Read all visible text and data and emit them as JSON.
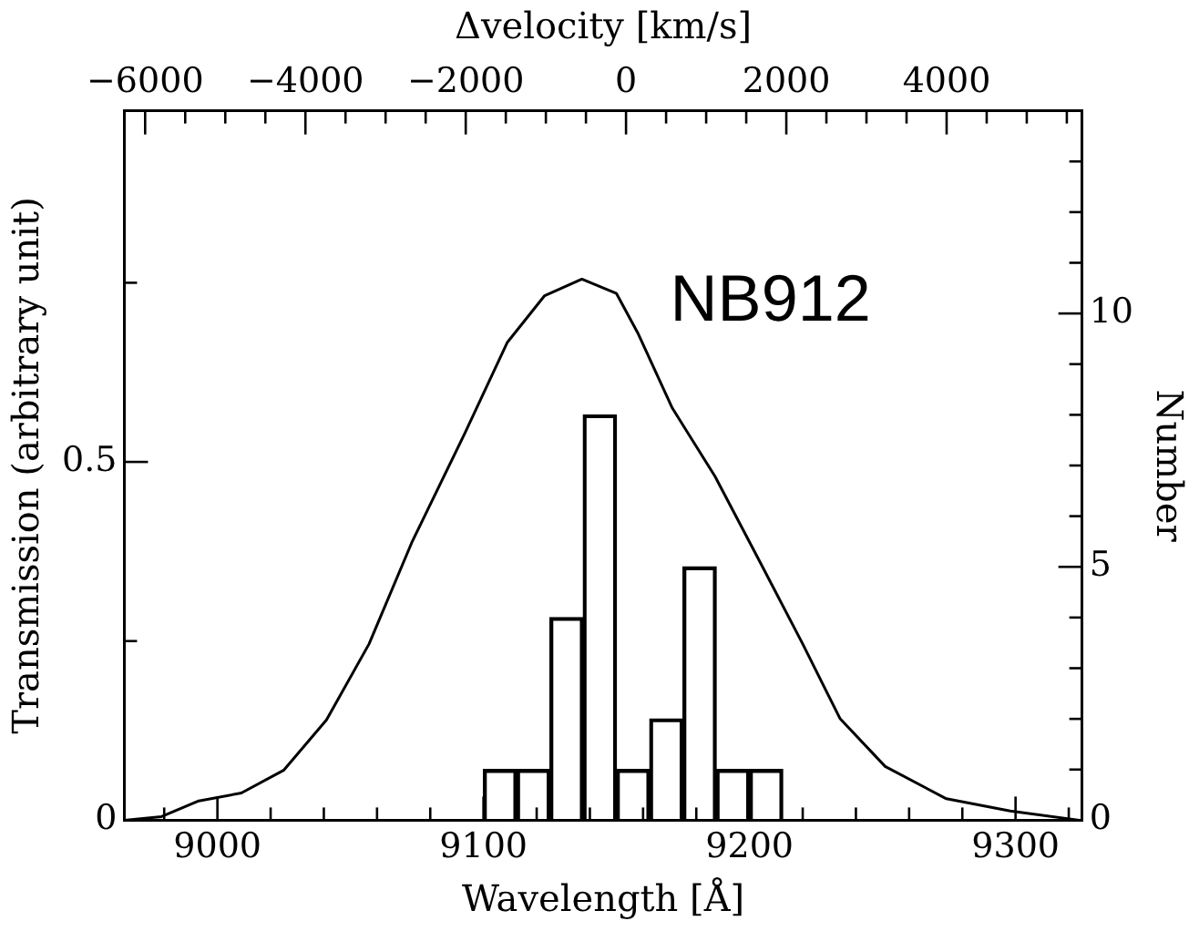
{
  "chart_data": {
    "type": "line",
    "xlabel": "Wavelength [Å]",
    "ylabel": "Transmission (arbitrary unit)",
    "y2label": "Number",
    "x2label": "Δvelocity [km/s]",
    "annotations": [
      "NB912"
    ],
    "xlim": [
      8965,
      9325
    ],
    "xticks": [
      {
        "value": 8980,
        "label": null
      },
      9000,
      {
        "value": 9020,
        "label": null
      },
      {
        "value": 9040,
        "label": null
      },
      {
        "value": 9060,
        "label": null
      },
      {
        "value": 9080,
        "label": null
      },
      9100,
      {
        "value": 9120,
        "label": null
      },
      {
        "value": 9140,
        "label": null
      },
      {
        "value": 9160,
        "label": null
      },
      {
        "value": 9180,
        "label": null
      },
      9200,
      {
        "value": 9220,
        "label": null
      },
      {
        "value": 9240,
        "label": null
      },
      {
        "value": 9260,
        "label": null
      },
      {
        "value": 9280,
        "label": null
      },
      9300,
      {
        "value": 9320,
        "label": null
      }
    ],
    "x2lim": [
      -6260,
      5690
    ],
    "x2ticks": [
      {
        "value": -6000,
        "label": "−6000"
      },
      {
        "value": -5500,
        "label": null
      },
      {
        "value": -5000,
        "label": null
      },
      {
        "value": -4500,
        "label": null
      },
      {
        "value": -4000,
        "label": "−4000"
      },
      {
        "value": -3500,
        "label": null
      },
      {
        "value": -3000,
        "label": null
      },
      {
        "value": -2500,
        "label": null
      },
      {
        "value": -2000,
        "label": "−2000"
      },
      {
        "value": -1500,
        "label": null
      },
      {
        "value": -1000,
        "label": null
      },
      {
        "value": -500,
        "label": null
      },
      0,
      {
        "value": 500,
        "label": null
      },
      {
        "value": 1000,
        "label": null
      },
      {
        "value": 1500,
        "label": null
      },
      2000,
      {
        "value": 2500,
        "label": null
      },
      {
        "value": 3000,
        "label": null
      },
      {
        "value": 3500,
        "label": null
      },
      4000,
      {
        "value": 4500,
        "label": null
      },
      {
        "value": 5000,
        "label": null
      },
      {
        "value": 5500,
        "label": null
      }
    ],
    "ylim": [
      0,
      0.99
    ],
    "yticks": [
      0,
      {
        "value": 0.25,
        "label": null
      },
      0.5,
      {
        "value": 0.75,
        "label": null
      }
    ],
    "y2lim": [
      0,
      14
    ],
    "y2ticks": [
      0,
      {
        "value": 1,
        "label": null
      },
      {
        "value": 2,
        "label": null
      },
      {
        "value": 3,
        "label": null
      },
      {
        "value": 4,
        "label": null
      },
      5,
      {
        "value": 6,
        "label": null
      },
      {
        "value": 7,
        "label": null
      },
      {
        "value": 8,
        "label": null
      },
      {
        "value": 9,
        "label": null
      },
      10,
      {
        "value": 11,
        "label": null
      },
      {
        "value": 12,
        "label": null
      },
      {
        "value": 13,
        "label": null
      }
    ],
    "legend": false,
    "series": [
      {
        "color": "#000000",
        "x": [
          8965,
          8979,
          8993,
          9009,
          9025,
          9041,
          9057,
          9073,
          9093,
          9109,
          9123,
          9137,
          9150,
          9158,
          9171,
          9187,
          9204,
          9220,
          9234,
          9251,
          9274,
          9298,
          9324
        ],
        "values": [
          0,
          0.005,
          0.027,
          0.038,
          0.07,
          0.14,
          0.246,
          0.387,
          0.54,
          0.667,
          0.732,
          0.755,
          0.735,
          0.68,
          0.575,
          0.48,
          0.36,
          0.246,
          0.142,
          0.075,
          0.03,
          0.013,
          0
        ]
      },
      {
        "type": "bar",
        "axis": "y2",
        "color": "#000000",
        "x": [
          9106.25,
          9118.75,
          9131.25,
          9143.75,
          9156.25,
          9168.75,
          9181.25,
          9193.75,
          9206.25
        ],
        "values": [
          1,
          1,
          4,
          8,
          1,
          2,
          5,
          1,
          1
        ]
      }
    ]
  }
}
